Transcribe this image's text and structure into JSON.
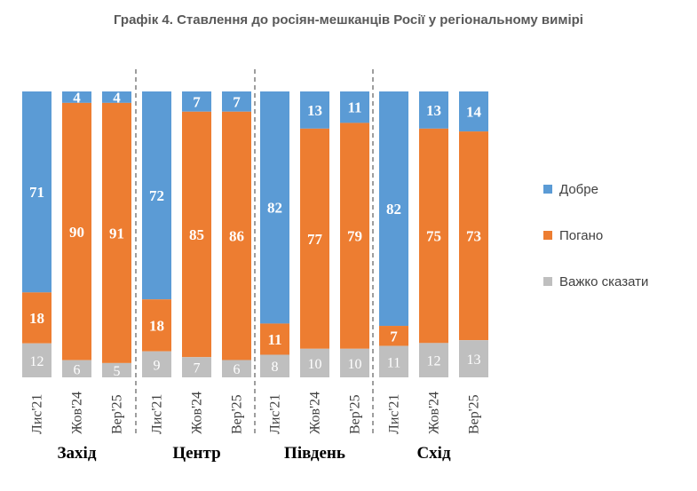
{
  "title": "Графік 4. Ставлення до росіян-мешканців Росії у регіональному вимірі",
  "chart_data": {
    "type": "bar",
    "stacked": true,
    "series": [
      {
        "name": "Добре",
        "color": "#5b9bd5"
      },
      {
        "name": "Погано",
        "color": "#ed7d31"
      },
      {
        "name": "Важко сказати",
        "color": "#bfbfbf"
      }
    ],
    "groups": [
      {
        "name": "Захід",
        "bars": [
          {
            "label": "Лис'21",
            "values": [
              71,
              18,
              12
            ]
          },
          {
            "label": "Жов'24",
            "values": [
              4,
              90,
              6
            ]
          },
          {
            "label": "Вер'25",
            "values": [
              4,
              91,
              5
            ]
          }
        ]
      },
      {
        "name": "Центр",
        "bars": [
          {
            "label": "Лис'21",
            "values": [
              72,
              18,
              9
            ]
          },
          {
            "label": "Жов'24",
            "values": [
              7,
              85,
              7
            ]
          },
          {
            "label": "Вер'25",
            "values": [
              7,
              86,
              6
            ]
          }
        ]
      },
      {
        "name": "Південь",
        "bars": [
          {
            "label": "Лис'21",
            "values": [
              82,
              11,
              8
            ]
          },
          {
            "label": "Жов'24",
            "values": [
              13,
              77,
              10
            ]
          },
          {
            "label": "Вер'25",
            "values": [
              11,
              79,
              10
            ]
          }
        ]
      },
      {
        "name": "Схід",
        "bars": [
          {
            "label": "Лис'21",
            "values": [
              82,
              7,
              11
            ]
          },
          {
            "label": "Жов'24",
            "values": [
              13,
              75,
              12
            ]
          },
          {
            "label": "Вер'25",
            "values": [
              14,
              73,
              13
            ]
          }
        ]
      }
    ],
    "ylim": [
      0,
      100
    ],
    "legend_position": "right"
  }
}
